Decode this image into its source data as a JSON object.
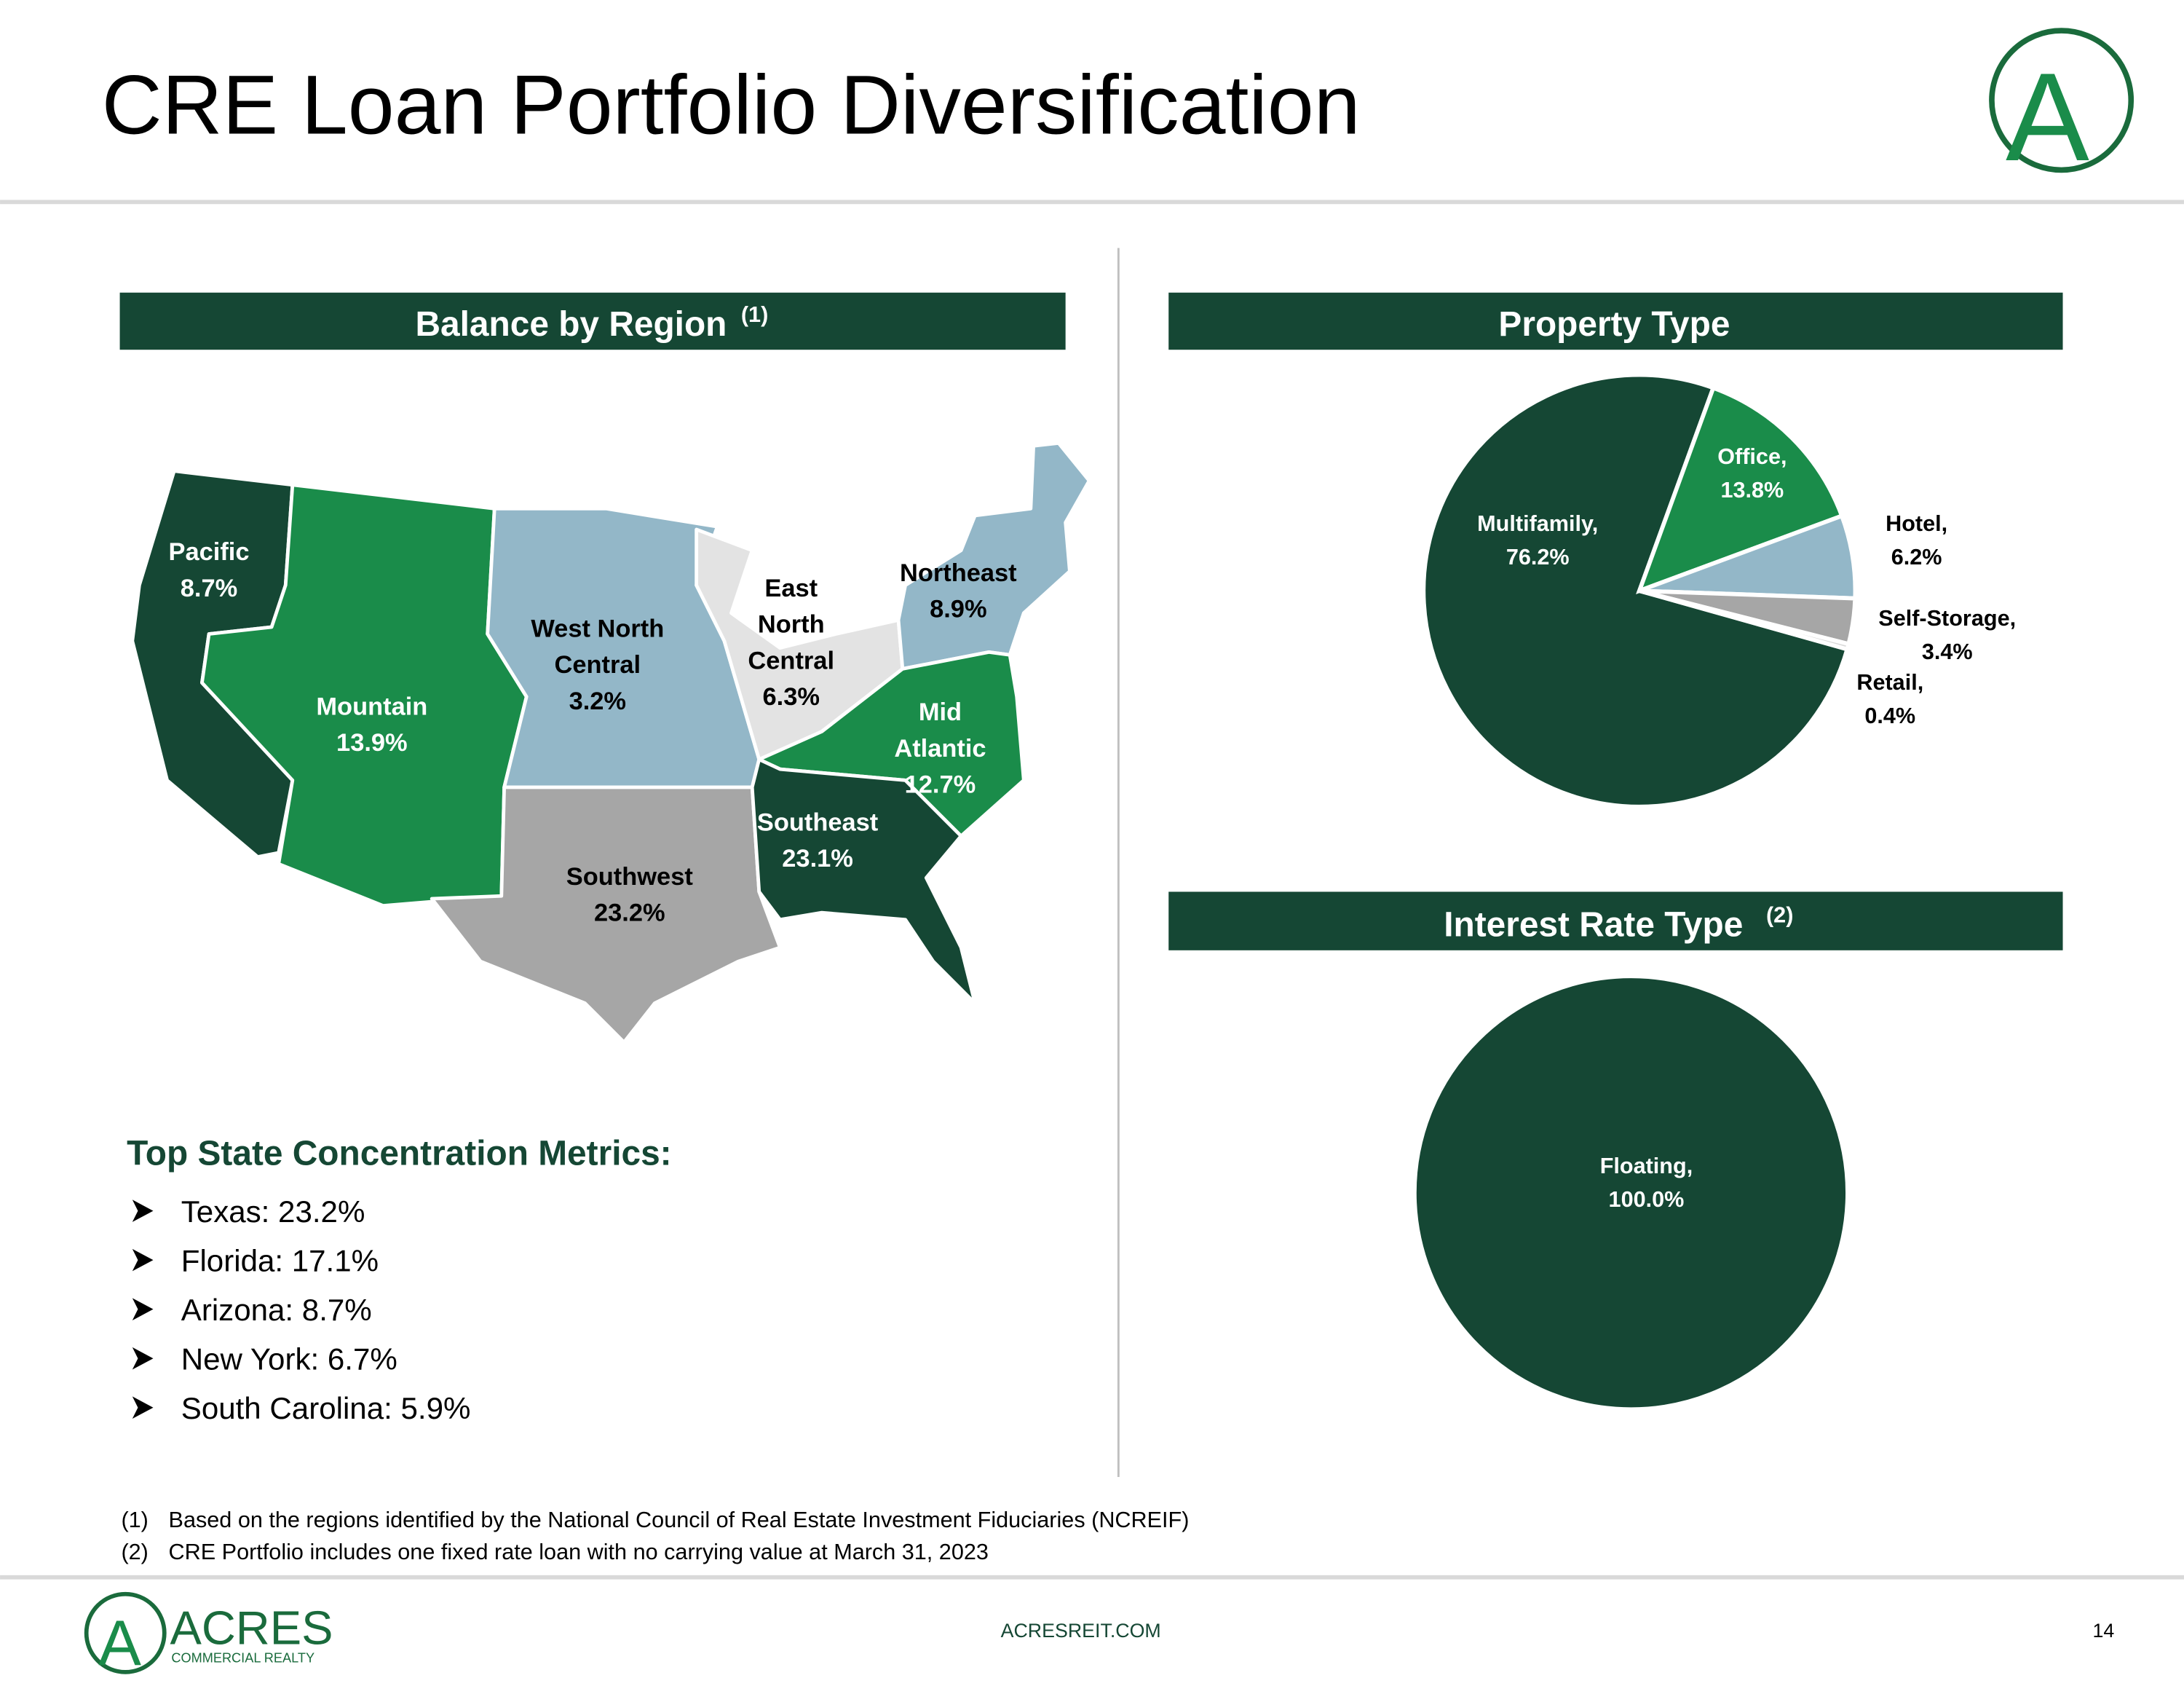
{
  "title": "CRE Loan Portfolio Diversification",
  "region_panel": {
    "header": "Balance by Region",
    "header_note": "(1)",
    "regions": [
      {
        "lines": [
          "Pacific"
        ],
        "share": "8.7%"
      },
      {
        "lines": [
          "Mountain"
        ],
        "share": "13.9%"
      },
      {
        "lines": [
          "West North",
          "Central"
        ],
        "share": "3.2%"
      },
      {
        "lines": [
          "East",
          "North",
          "Central"
        ],
        "share": "6.3%"
      },
      {
        "lines": [
          "Northeast"
        ],
        "share": "8.9%"
      },
      {
        "lines": [
          "Mid",
          "Atlantic"
        ],
        "share": "12.7%"
      },
      {
        "lines": [
          "Southeast"
        ],
        "share": "23.1%"
      },
      {
        "lines": [
          "Southwest"
        ],
        "share": "23.2%"
      }
    ]
  },
  "state_metrics": {
    "heading": "Top State Concentration Metrics:",
    "items": [
      "Texas: 23.2%",
      "Florida: 17.1%",
      "Arizona: 8.7%",
      "New York: 6.7%",
      "South Carolina: 5.9%"
    ]
  },
  "chart_data": [
    {
      "type": "pie",
      "title": "Property Type",
      "categories": [
        "Multifamily,",
        "Office,",
        "Hotel,",
        "Self-Storage,",
        "Retail,"
      ],
      "values": [
        76.2,
        13.8,
        6.2,
        3.4,
        0.4
      ],
      "value_labels": [
        "76.2%",
        "13.8%",
        "6.2%",
        "3.4%",
        "0.4%"
      ],
      "colors": [
        "#154734",
        "#1a8c4a",
        "#93b7c8",
        "#a6a6a6",
        "#d9d9d9"
      ]
    },
    {
      "type": "pie",
      "title": "Interest Rate Type",
      "title_note": "(2)",
      "categories": [
        "Floating,"
      ],
      "values": [
        100.0
      ],
      "value_labels": [
        "100.0%"
      ],
      "colors": [
        "#154734"
      ]
    }
  ],
  "footnotes": [
    {
      "marker": "(1)",
      "text": "Based on the regions identified by the National Council of Real Estate Investment Fiduciaries (NCREIF)"
    },
    {
      "marker": "(2)",
      "text": "CRE Portfolio includes one fixed rate loan with no carrying value at March 31, 2023"
    }
  ],
  "footer": {
    "brand": "ACRES",
    "brand_sub": "COMMERCIAL REALTY",
    "website": "ACRESREIT.COM",
    "page_number": "14"
  }
}
